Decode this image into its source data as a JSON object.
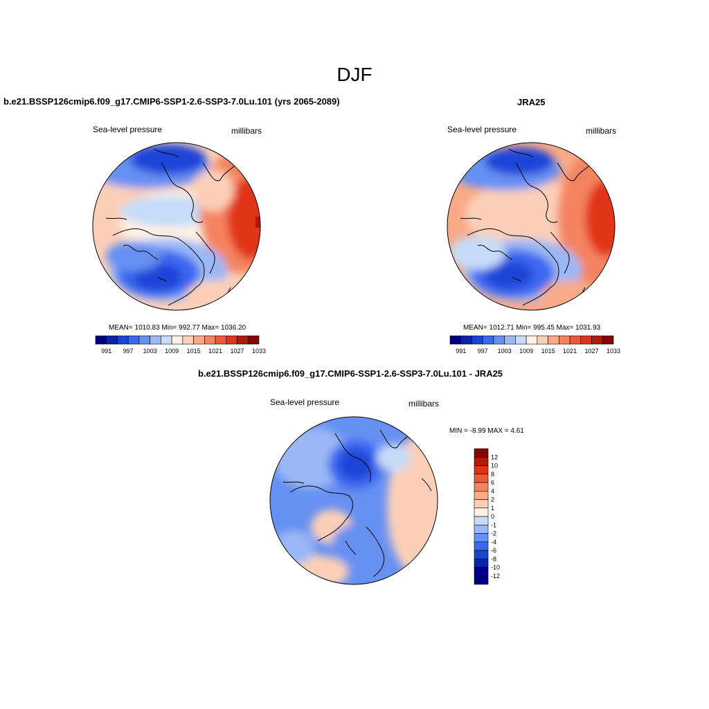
{
  "figure": {
    "title": "DJF"
  },
  "panels": [
    {
      "title": "b.e21.BSSP126cmip6.f09_g17.CMIP6-SSP1-2.6-SSP3-7.0Lu.101 (yrs 2065-2089)",
      "left_label": "Sea-level pressure",
      "right_label": "millibars",
      "stats": "MEAN= 1010.83  Min= 992.77  Max= 1036.20"
    },
    {
      "title": "JRA25",
      "left_label": "Sea-level pressure",
      "right_label": "millibars",
      "stats": "MEAN= 1012.71  Min= 995.45  Max= 1031.93"
    },
    {
      "title": "b.e21.BSSP126cmip6.f09_g17.CMIP6-SSP1-2.6-SSP3-7.0Lu.101 - JRA25",
      "left_label": "Sea-level pressure",
      "right_label": "millibars",
      "stats": "MIN =  -8.99 MAX =   4.61"
    }
  ],
  "colorbar_abs": {
    "colors": [
      "#00007f",
      "#0a24a8",
      "#1a44d8",
      "#3a68ee",
      "#6690f2",
      "#9ab8f6",
      "#c6dcf8",
      "#fff1e3",
      "#fcd0b8",
      "#f8aa88",
      "#f48460",
      "#ee5a38",
      "#e03418",
      "#b01a0a",
      "#860600"
    ],
    "labels": [
      "991",
      "997",
      "1003",
      "1009",
      "1015",
      "1021",
      "1027",
      "1033"
    ]
  },
  "colorbar_diff": {
    "colors": [
      "#00007f",
      "#0a24a8",
      "#1a44d8",
      "#3a68ee",
      "#6690f2",
      "#9ab8f6",
      "#c6dcf8",
      "#fff1e3",
      "#fcd0b8",
      "#f8aa88",
      "#f48460",
      "#ee5a38",
      "#e03418",
      "#b01a0a",
      "#860600"
    ],
    "labels": [
      "12",
      "10",
      "8",
      "6",
      "4",
      "2",
      "1",
      "0",
      "-1",
      "-2",
      "-4",
      "-6",
      "-8",
      "-10",
      "-12"
    ]
  }
}
